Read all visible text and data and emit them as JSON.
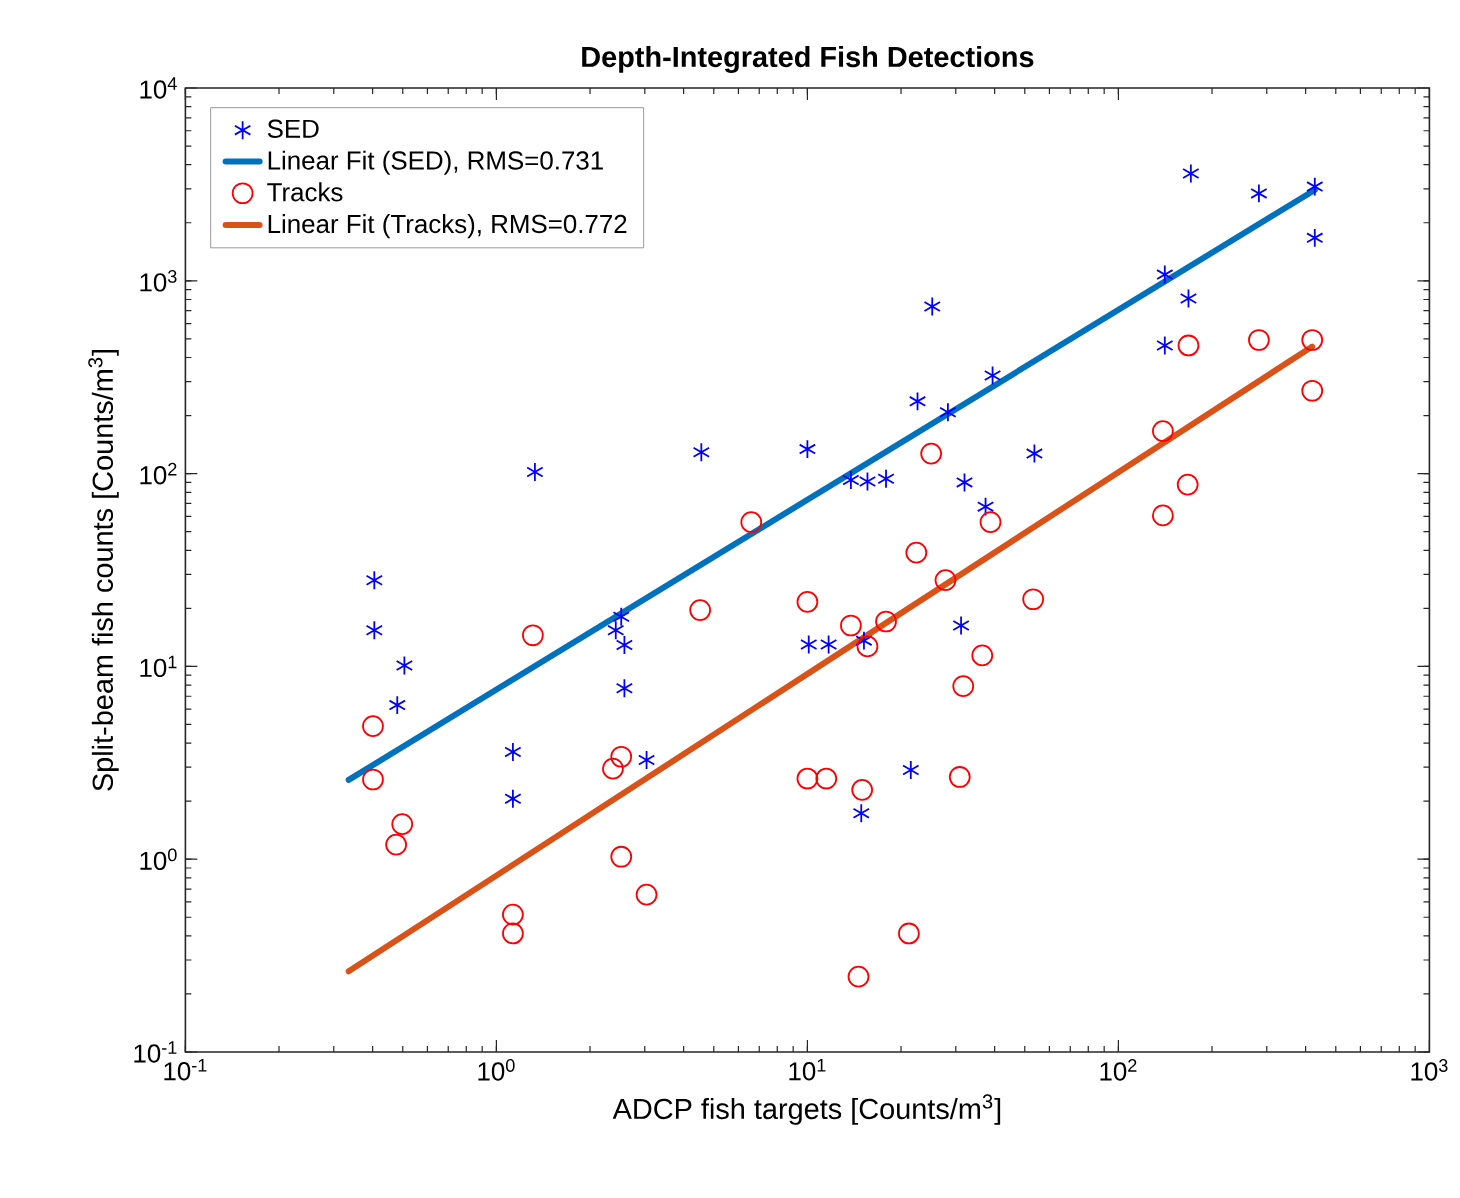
{
  "chart_data": {
    "type": "scatter",
    "title": "Depth-Integrated Fish Detections",
    "xlabel": "ADCP fish targets [Counts/m$^{3}$]",
    "ylabel": "Split-beam fish counts [Counts/m$^{3}$]",
    "log": "xy",
    "grid": false,
    "legend": "top left",
    "xlim": [
      0.1,
      1000
    ],
    "ylim": [
      0.1,
      10000
    ],
    "xticks": [
      {
        "value": 0.1,
        "label": "10$^{-1}$"
      },
      {
        "value": 1,
        "label": "10$^{0}$"
      },
      {
        "value": 10,
        "label": "10$^{1}$"
      },
      {
        "value": 100,
        "label": "10$^{2}$"
      },
      {
        "value": 1000,
        "label": "10$^{3}$"
      }
    ],
    "yticks": [
      {
        "value": 0.1,
        "label": "10$^{-1}$"
      },
      {
        "value": 1,
        "label": "10$^{0}$"
      },
      {
        "value": 10,
        "label": "10$^{1}$"
      },
      {
        "value": 100,
        "label": "10$^{2}$"
      },
      {
        "value": 1000,
        "label": "10$^{3}$"
      },
      {
        "value": 10000,
        "label": "10$^{4}$"
      }
    ],
    "series": [
      {
        "name": "SED",
        "type": "scatter",
        "marker": "cross",
        "color": "#0000ff",
        "x": [
          1.33,
          4.56,
          10,
          0.405,
          0.405,
          0.506,
          0.48,
          2.52,
          2.42,
          2.58,
          2.58,
          1.13,
          1.13,
          3.04,
          10.1,
          11.7,
          171,
          283,
          428,
          428,
          141,
          168,
          141,
          25.2,
          39.4,
          22.6,
          28.3,
          53.7,
          13.8,
          15.6,
          17.9,
          32,
          37.4,
          31.2,
          15.2,
          21.5,
          14.9
        ],
        "values": [
          102,
          129,
          134,
          28,
          15.4,
          10.1,
          6.3,
          18.1,
          15.4,
          12.9,
          7.7,
          3.6,
          2.06,
          3.27,
          13,
          13,
          3600,
          2840,
          3080,
          1670,
          1077,
          809,
          462,
          735,
          323,
          237,
          208,
          127,
          92.7,
          91,
          94,
          90,
          67.4,
          16.3,
          13.6,
          2.9,
          1.73
        ]
      },
      {
        "name": "Linear Fit (SED), RMS=0.731",
        "type": "line",
        "marker": "none",
        "color": "#0072bd",
        "x": [
          0.335,
          428
        ],
        "values": [
          2.58,
          2960
        ]
      },
      {
        "name": "Tracks",
        "type": "scatter",
        "marker": "circle",
        "color": "#ff0000",
        "x": [
          6.6,
          4.52,
          10,
          1.31,
          0.401,
          0.401,
          0.498,
          0.476,
          2.52,
          2.37,
          2.52,
          3.04,
          1.13,
          1.13,
          10,
          11.5,
          168,
          283,
          420,
          420,
          139,
          167,
          139,
          25,
          38.8,
          22.4,
          27.8,
          53.2,
          13.8,
          17.9,
          15.6,
          36.5,
          31.7,
          30.9,
          15,
          21.2,
          14.6
        ],
        "values": [
          56,
          19.6,
          21.6,
          14.5,
          4.9,
          2.59,
          1.52,
          1.19,
          3.4,
          2.95,
          1.03,
          0.655,
          0.516,
          0.412,
          2.62,
          2.62,
          462,
          493,
          493,
          269,
          166,
          87.7,
          60.7,
          127,
          56,
          38.9,
          28,
          22.3,
          16.3,
          17.1,
          12.7,
          11.4,
          7.9,
          2.67,
          2.29,
          0.412,
          0.246
        ]
      },
      {
        "name": "Linear Fit (Tracks), RMS=0.772",
        "type": "line",
        "marker": "none",
        "color": "#d95319",
        "x": [
          0.335,
          420
        ],
        "values": [
          0.262,
          456
        ]
      }
    ]
  }
}
